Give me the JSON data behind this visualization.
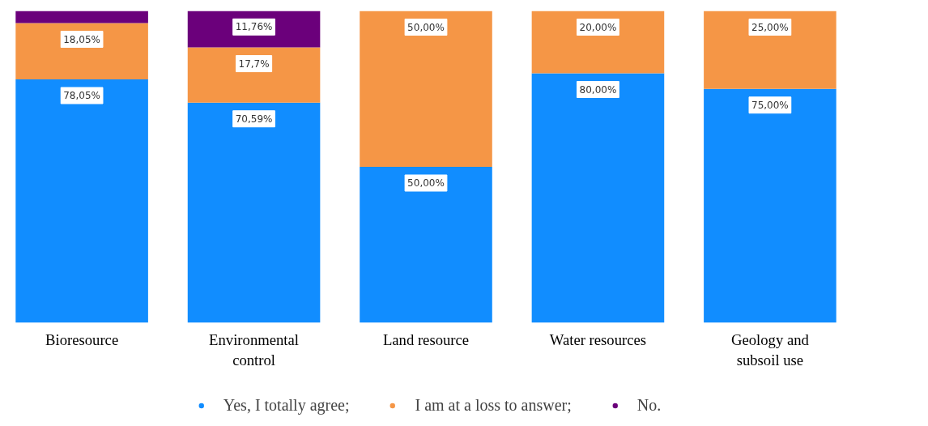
{
  "chart_data": {
    "type": "bar",
    "stacked": true,
    "categories": [
      "Bioresource",
      "Environmental control",
      "Land resource",
      "Water resources",
      "Geology and subsoil use"
    ],
    "series": [
      {
        "name": "Yes, I totally agree;",
        "color": "#118dff",
        "values": [
          78.05,
          70.59,
          50.0,
          80.0,
          75.0
        ],
        "value_labels": [
          "78,05%",
          "70,59%",
          "50,00%",
          "80,00%",
          "75,00%"
        ]
      },
      {
        "name": "I am at a loss to answer;",
        "color": "#f59646",
        "values": [
          18.05,
          17.7,
          50.0,
          20.0,
          25.0
        ],
        "value_labels": [
          "18,05%",
          "17,7%",
          "50,00%",
          "20,00%",
          "25,00%"
        ]
      },
      {
        "name": "No.",
        "color": "#6b007b",
        "values": [
          3.9,
          11.76,
          0,
          0,
          0
        ],
        "value_labels": [
          null,
          "11,76%",
          null,
          null,
          null
        ]
      }
    ],
    "ylim": [
      0,
      100
    ],
    "tick_labels": "x",
    "grid": false,
    "legend": "bottom"
  }
}
